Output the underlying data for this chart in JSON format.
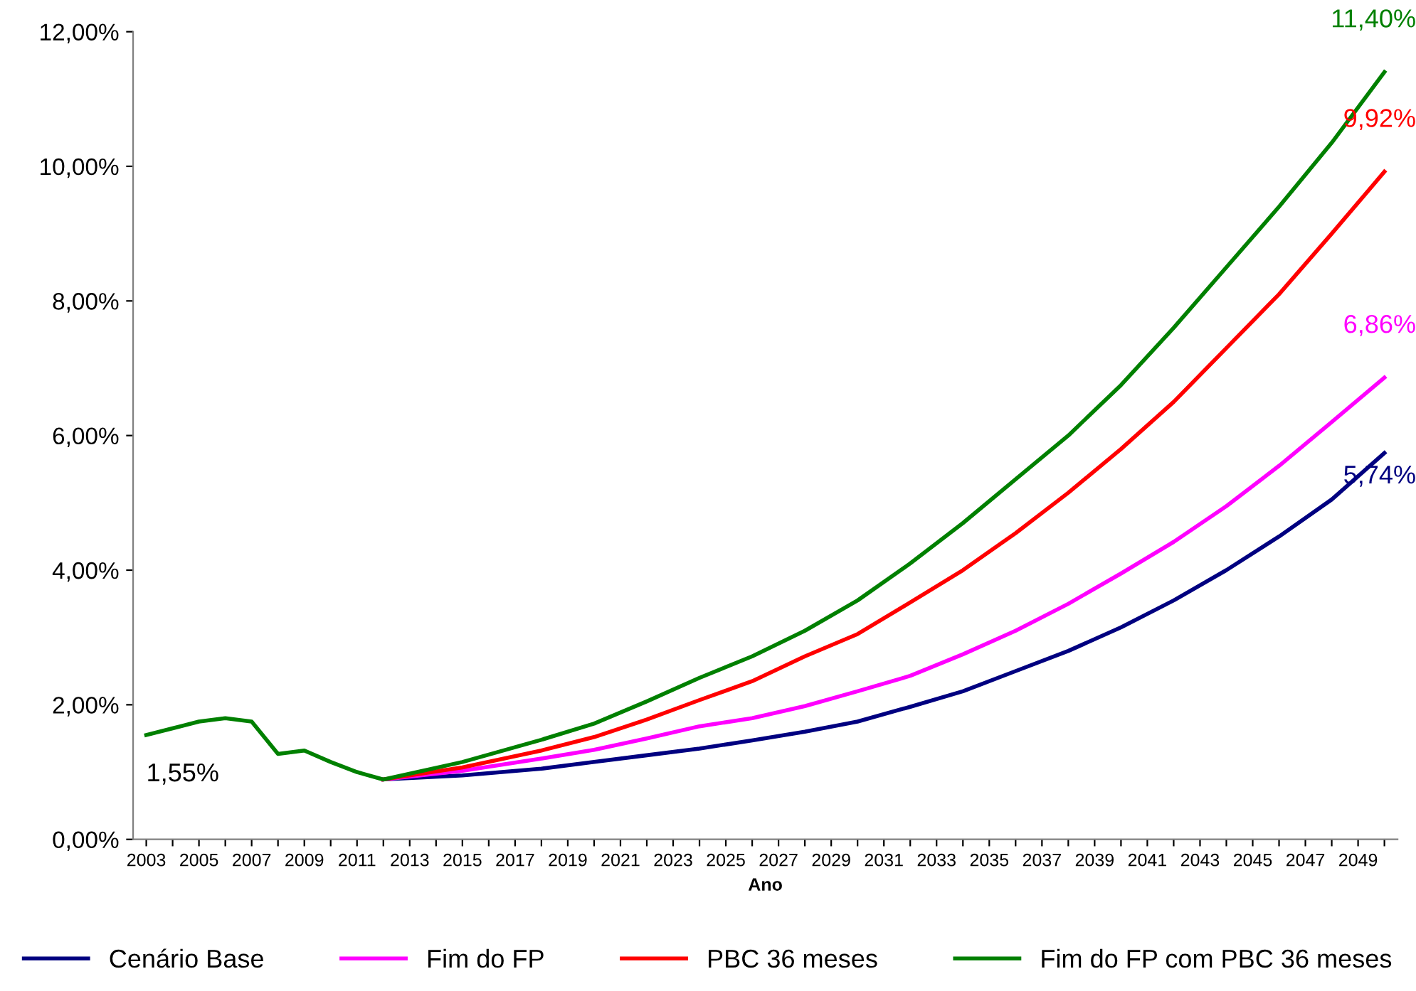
{
  "chart_data": {
    "type": "line",
    "xlabel": "Ano",
    "x": [
      2003,
      2004,
      2005,
      2006,
      2007,
      2008,
      2009,
      2010,
      2011,
      2012,
      2015,
      2018,
      2020,
      2022,
      2024,
      2026,
      2028,
      2030,
      2032,
      2034,
      2036,
      2038,
      2040,
      2042,
      2044,
      2046,
      2048,
      2050
    ],
    "series": [
      {
        "name": "Cenário Base",
        "color": "#000080",
        "values": [
          null,
          null,
          null,
          null,
          null,
          null,
          null,
          null,
          null,
          0.89,
          0.95,
          1.05,
          1.15,
          1.25,
          1.35,
          1.47,
          1.6,
          1.75,
          1.97,
          2.2,
          2.5,
          2.8,
          3.15,
          3.55,
          4.0,
          4.5,
          5.05,
          5.74
        ],
        "value_labels": [
          null,
          null,
          null,
          null,
          null,
          null,
          null,
          null,
          null,
          null,
          null,
          null,
          null,
          null,
          null,
          null,
          null,
          null,
          null,
          null,
          null,
          null,
          null,
          null,
          null,
          null,
          null,
          "5,74%"
        ]
      },
      {
        "name": "Fim do FP",
        "color": "#ff00ff",
        "values": [
          null,
          null,
          null,
          null,
          null,
          null,
          null,
          null,
          null,
          0.89,
          1.02,
          1.2,
          1.33,
          1.5,
          1.68,
          1.8,
          1.98,
          2.2,
          2.43,
          2.75,
          3.1,
          3.5,
          3.95,
          4.42,
          4.95,
          5.55,
          6.2,
          6.86
        ],
        "value_labels": [
          null,
          null,
          null,
          null,
          null,
          null,
          null,
          null,
          null,
          null,
          null,
          null,
          null,
          null,
          null,
          null,
          null,
          null,
          null,
          null,
          null,
          null,
          null,
          null,
          null,
          null,
          null,
          "6,86%"
        ]
      },
      {
        "name": "PBC 36 meses",
        "color": "#ff0000",
        "values": [
          null,
          null,
          null,
          null,
          null,
          null,
          null,
          null,
          null,
          0.89,
          1.07,
          1.32,
          1.52,
          1.78,
          2.07,
          2.35,
          2.72,
          3.05,
          3.52,
          4.0,
          4.55,
          5.15,
          5.8,
          6.5,
          7.3,
          8.1,
          9.0,
          9.92
        ],
        "value_labels": [
          null,
          null,
          null,
          null,
          null,
          null,
          null,
          null,
          null,
          null,
          null,
          null,
          null,
          null,
          null,
          null,
          null,
          null,
          null,
          null,
          null,
          null,
          null,
          null,
          null,
          null,
          null,
          "9,92%"
        ]
      },
      {
        "name": "Fim do FP com PBC 36 meses",
        "color": "#008000",
        "values": [
          1.55,
          1.65,
          1.75,
          1.8,
          1.75,
          1.27,
          1.32,
          1.15,
          1.0,
          0.89,
          1.15,
          1.48,
          1.72,
          2.05,
          2.4,
          2.72,
          3.1,
          3.55,
          4.1,
          4.7,
          5.35,
          6.0,
          6.75,
          7.6,
          8.5,
          9.4,
          10.35,
          11.4
        ],
        "value_labels": [
          null,
          null,
          null,
          null,
          null,
          null,
          null,
          null,
          null,
          null,
          null,
          null,
          null,
          null,
          null,
          null,
          null,
          null,
          null,
          null,
          null,
          null,
          null,
          null,
          null,
          null,
          null,
          "11,40%"
        ]
      }
    ],
    "annotations": [
      {
        "text": "1,55%",
        "x": 2003,
        "y": 1.55
      }
    ],
    "xlim": [
      2002.5,
      2050.5
    ],
    "xticks": [
      {
        "value": 2003,
        "label": "2003"
      },
      {
        "value": 2004,
        "label": null
      },
      {
        "value": 2005,
        "label": "2005"
      },
      {
        "value": 2006,
        "label": null
      },
      {
        "value": 2007,
        "label": "2007"
      },
      {
        "value": 2008,
        "label": null
      },
      {
        "value": 2009,
        "label": "2009"
      },
      {
        "value": 2010,
        "label": null
      },
      {
        "value": 2011,
        "label": "2011"
      },
      {
        "value": 2012,
        "label": null
      },
      {
        "value": 2013,
        "label": "2013"
      },
      {
        "value": 2014,
        "label": null
      },
      {
        "value": 2015,
        "label": "2015"
      },
      {
        "value": 2016,
        "label": null
      },
      {
        "value": 2017,
        "label": "2017"
      },
      {
        "value": 2018,
        "label": null
      },
      {
        "value": 2019,
        "label": "2019"
      },
      {
        "value": 2020,
        "label": null
      },
      {
        "value": 2021,
        "label": "2021"
      },
      {
        "value": 2022,
        "label": null
      },
      {
        "value": 2023,
        "label": "2023"
      },
      {
        "value": 2024,
        "label": null
      },
      {
        "value": 2025,
        "label": "2025"
      },
      {
        "value": 2026,
        "label": null
      },
      {
        "value": 2027,
        "label": "2027"
      },
      {
        "value": 2028,
        "label": null
      },
      {
        "value": 2029,
        "label": "2029"
      },
      {
        "value": 2030,
        "label": null
      },
      {
        "value": 2031,
        "label": "2031"
      },
      {
        "value": 2032,
        "label": null
      },
      {
        "value": 2033,
        "label": "2033"
      },
      {
        "value": 2034,
        "label": null
      },
      {
        "value": 2035,
        "label": "2035"
      },
      {
        "value": 2036,
        "label": null
      },
      {
        "value": 2037,
        "label": "2037"
      },
      {
        "value": 2038,
        "label": null
      },
      {
        "value": 2039,
        "label": "2039"
      },
      {
        "value": 2040,
        "label": null
      },
      {
        "value": 2041,
        "label": "2041"
      },
      {
        "value": 2042,
        "label": null
      },
      {
        "value": 2043,
        "label": "2043"
      },
      {
        "value": 2044,
        "label": null
      },
      {
        "value": 2045,
        "label": "2045"
      },
      {
        "value": 2046,
        "label": null
      },
      {
        "value": 2047,
        "label": "2047"
      },
      {
        "value": 2048,
        "label": null
      },
      {
        "value": 2049,
        "label": "2049"
      },
      {
        "value": 2050,
        "label": null
      }
    ],
    "ylim": [
      0,
      12
    ],
    "yticks": [
      {
        "value": 0,
        "label": "0,00%"
      },
      {
        "value": 2,
        "label": "2,00%"
      },
      {
        "value": 4,
        "label": "4,00%"
      },
      {
        "value": 6,
        "label": "6,00%"
      },
      {
        "value": 8,
        "label": "8,00%"
      },
      {
        "value": 10,
        "label": "10,00%"
      },
      {
        "value": 12,
        "label": "12,00%"
      }
    ],
    "grid": false,
    "legend": "bottom",
    "marker": "none",
    "line_style": "solid"
  }
}
